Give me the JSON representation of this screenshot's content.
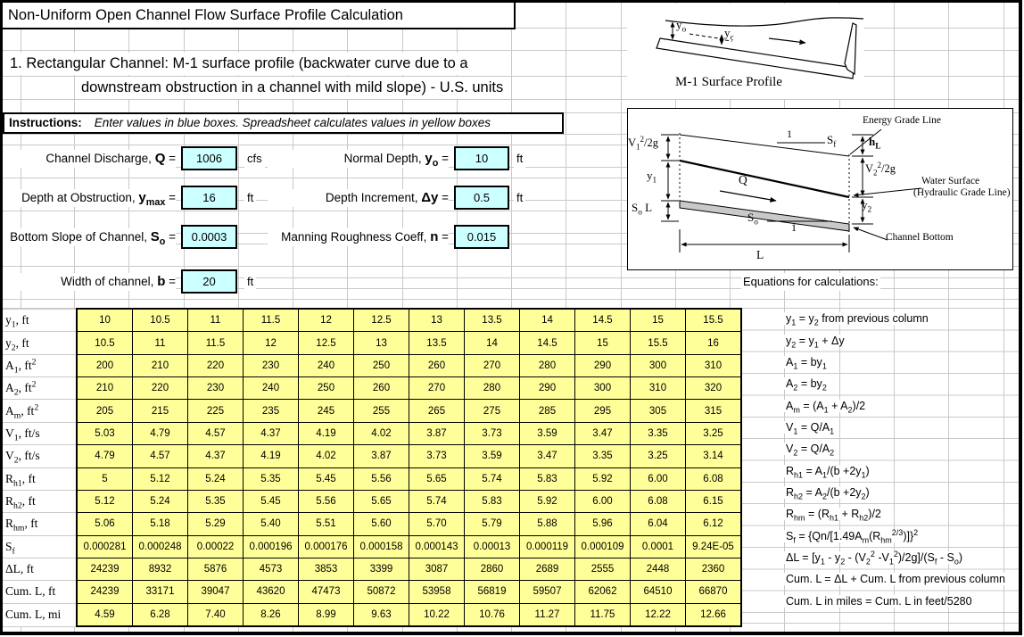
{
  "colors": {
    "input_box_fill": "#CCFFFF",
    "calc_cell_fill": "#FFFF99",
    "gridline": "#C9C9C9",
    "border": "#000000",
    "channel_bottom_fill": "#C9C9C9"
  },
  "title": "Non-Uniform Open Channel Flow Surface Profile Calculation",
  "subtitle_line1": "1. Rectangular Channel: M-1 surface profile (backwater curve due to a",
  "subtitle_line2": "downstream obstruction in a channel with mild slope) - U.S. units",
  "instructions": {
    "label": "Instructions:",
    "text": "Enter values in blue boxes.  Spreadsheet calculates values in yellow boxes"
  },
  "inputs": {
    "q": {
      "label": "Channel Discharge, <span class='sym'>Q</span> =",
      "value": "1006",
      "unit": "cfs"
    },
    "yo": {
      "label": "Normal Depth, <span class='sym'>y<sub>o</sub></span> =",
      "value": "10",
      "unit": "ft"
    },
    "ymax": {
      "label": "Depth at Obstruction, <span class='sym'>y<sub>max</sub></span> =",
      "value": "16",
      "unit": "ft"
    },
    "dy": {
      "label": "Depth Increment, <span class='sym'>Δy</span> =",
      "value": "0.5",
      "unit": "ft"
    },
    "so": {
      "label": "Bottom Slope of Channel, <span class='sym'>S<sub>o</sub></span> =",
      "value": "0.0003",
      "unit": ""
    },
    "n": {
      "label": "Manning Roughness Coeff, <span class='sym'>n</span> =",
      "value": "0.015",
      "unit": ""
    },
    "b": {
      "label": "Width of channel, <span class='sym'>b</span> =",
      "value": "20",
      "unit": "ft"
    }
  },
  "equations_header": "Equations for calculations:",
  "diagram_m1": {
    "caption": "M-1 Surface Profile",
    "label_yo": "y<sub>o</sub>",
    "label_yc": "y<sub>c</sub>"
  },
  "diagram_energy": {
    "egl": "Energy Grade Line",
    "slope_one_top": "1",
    "sf": "S<sub>f</sub>",
    "hl": "h<sub>L</sub>",
    "v1_head": "V<sub>1</sub><sup>2</sup>/2g",
    "y1": "y<sub>1</sub>",
    "v2_head": "V<sub>2</sub><sup>2</sup>/2g",
    "water_surface_1": "Water Surface",
    "water_surface_2": "(Hydraulic Grade Line)",
    "q": "Q",
    "so_l": "S<sub>o</sub> L",
    "y2": "y<sub>2</sub>",
    "so": "S<sub>o</sub>",
    "slope_one_bottom": "1",
    "channel_bottom": "Channel Bottom",
    "length": "L"
  },
  "table": {
    "rows": [
      {
        "label": "y<sub>1</sub>, ft",
        "values": [
          "10",
          "10.5",
          "11",
          "11.5",
          "12",
          "12.5",
          "13",
          "13.5",
          "14",
          "14.5",
          "15",
          "15.5"
        ],
        "equation": "y<sub>1</sub> = y<sub>2</sub> from previous column"
      },
      {
        "label": "y<sub>2</sub>, ft",
        "values": [
          "10.5",
          "11",
          "11.5",
          "12",
          "12.5",
          "13",
          "13.5",
          "14",
          "14.5",
          "15",
          "15.5",
          "16"
        ],
        "equation": "y<sub>2</sub> = y<sub>1</sub> + Δy"
      },
      {
        "label": "A<sub>1</sub>, ft<sup>2</sup>",
        "values": [
          "200",
          "210",
          "220",
          "230",
          "240",
          "250",
          "260",
          "270",
          "280",
          "290",
          "300",
          "310"
        ],
        "equation": "A<sub>1</sub> = by<sub>1</sub>"
      },
      {
        "label": "A<sub>2</sub>, ft<sup>2</sup>",
        "values": [
          "210",
          "220",
          "230",
          "240",
          "250",
          "260",
          "270",
          "280",
          "290",
          "300",
          "310",
          "320"
        ],
        "equation": "A<sub>2</sub> = by<sub>2</sub>"
      },
      {
        "label": "A<sub>m</sub>, ft<sup>2</sup>",
        "values": [
          "205",
          "215",
          "225",
          "235",
          "245",
          "255",
          "265",
          "275",
          "285",
          "295",
          "305",
          "315"
        ],
        "equation": "A<sub>m</sub> = (A<sub>1</sub> + A<sub>2</sub>)/2"
      },
      {
        "label": "V<sub>1</sub>, ft/s",
        "values": [
          "5.03",
          "4.79",
          "4.57",
          "4.37",
          "4.19",
          "4.02",
          "3.87",
          "3.73",
          "3.59",
          "3.47",
          "3.35",
          "3.25"
        ],
        "equation": "V<sub>1</sub> = Q/A<sub>1</sub>"
      },
      {
        "label": "V<sub>2</sub>, ft/s",
        "values": [
          "4.79",
          "4.57",
          "4.37",
          "4.19",
          "4.02",
          "3.87",
          "3.73",
          "3.59",
          "3.47",
          "3.35",
          "3.25",
          "3.14"
        ],
        "equation": "V<sub>2</sub> = Q/A<sub>2</sub>"
      },
      {
        "label": "R<sub>h1</sub>, ft",
        "values": [
          "5",
          "5.12",
          "5.24",
          "5.35",
          "5.45",
          "5.56",
          "5.65",
          "5.74",
          "5.83",
          "5.92",
          "6.00",
          "6.08"
        ],
        "equation": "R<sub>h1</sub> = A<sub>1</sub>/(b +2y<sub>1</sub>)"
      },
      {
        "label": "R<sub>h2</sub>, ft",
        "values": [
          "5.12",
          "5.24",
          "5.35",
          "5.45",
          "5.56",
          "5.65",
          "5.74",
          "5.83",
          "5.92",
          "6.00",
          "6.08",
          "6.15"
        ],
        "equation": "R<sub>h2</sub> = A<sub>2</sub>/(b +2y<sub>2</sub>)"
      },
      {
        "label": "R<sub>hm</sub>, ft",
        "values": [
          "5.06",
          "5.18",
          "5.29",
          "5.40",
          "5.51",
          "5.60",
          "5.70",
          "5.79",
          "5.88",
          "5.96",
          "6.04",
          "6.12"
        ],
        "equation": "R<sub>hm</sub> = (R<sub>h1</sub> + R<sub>h2</sub>)/2"
      },
      {
        "label": "S<sub>f</sub>",
        "values": [
          "0.000281",
          "0.000248",
          "0.00022",
          "0.000196",
          "0.000176",
          "0.000158",
          "0.000143",
          "0.00013",
          "0.000119",
          "0.000109",
          "0.0001",
          "9.24E-05"
        ],
        "equation": "S<sub>f</sub> = {Qn/[1.49A<sub>m</sub>(R<sub>hm</sub><sup>2/3</sup>)]}<sup>2</sup>"
      },
      {
        "label": "ΔL, ft",
        "values": [
          "24239",
          "8932",
          "5876",
          "4573",
          "3853",
          "3399",
          "3087",
          "2860",
          "2689",
          "2555",
          "2448",
          "2360"
        ],
        "equation": "ΔL = [y<sub>1</sub> - y<sub>2</sub> - (V<sub>2</sub><sup>2</sup> -V<sub>1</sub><sup>2</sup>)/2g]/(S<sub>f</sub> - S<sub>o</sub>)"
      },
      {
        "label": "Cum. L, ft",
        "values": [
          "24239",
          "33171",
          "39047",
          "43620",
          "47473",
          "50872",
          "53958",
          "56819",
          "59507",
          "62062",
          "64510",
          "66870"
        ],
        "equation": "Cum. L = ΔL + Cum. L from previous column"
      },
      {
        "label": "Cum. L, mi",
        "values": [
          "4.59",
          "6.28",
          "7.40",
          "8.26",
          "8.99",
          "9.63",
          "10.22",
          "10.76",
          "11.27",
          "11.75",
          "12.22",
          "12.66"
        ],
        "equation": "Cum. L in miles = Cum. L in feet/5280"
      }
    ]
  }
}
